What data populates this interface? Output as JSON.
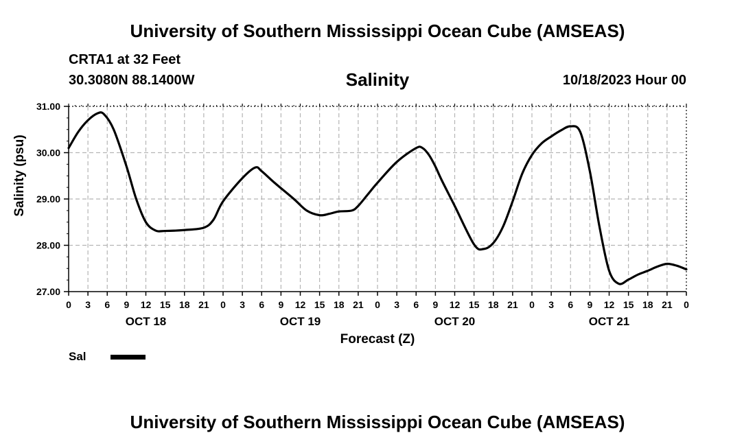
{
  "header": {
    "title": "University of Southern Mississippi Ocean Cube (AMSEAS)",
    "station": "CRTA1 at 32 Feet",
    "coordinates": "30.3080N  88.1400W",
    "date": "10/18/2023 Hour 00"
  },
  "footer": {
    "title": "University of Southern Mississippi Ocean Cube (AMSEAS)"
  },
  "legend": {
    "label": "Sal"
  },
  "colors": {
    "line": "#000000",
    "grid": "#b4b4b4"
  },
  "chart_data": {
    "type": "line",
    "title": "Salinity",
    "xlabel": "Forecast (Z)",
    "ylabel": "Salinity (psu)",
    "ylim": [
      27.0,
      31.0
    ],
    "yticks": [
      "27.00",
      "28.00",
      "29.00",
      "30.00",
      "31.00"
    ],
    "xlim_hours": [
      0,
      96
    ],
    "xtick_labels": [
      "0",
      "3",
      "6",
      "9",
      "12",
      "15",
      "18",
      "21",
      "0",
      "3",
      "6",
      "9",
      "12",
      "15",
      "18",
      "21",
      "0",
      "3",
      "6",
      "9",
      "12",
      "15",
      "18",
      "21",
      "0",
      "3",
      "6",
      "9",
      "12",
      "15",
      "18",
      "21",
      "0"
    ],
    "day_labels": [
      {
        "label": "OCT 18",
        "hour": 12
      },
      {
        "label": "OCT 19",
        "hour": 36
      },
      {
        "label": "OCT 20",
        "hour": 60
      },
      {
        "label": "OCT 21",
        "hour": 84
      }
    ],
    "grid": true,
    "series": [
      {
        "name": "Sal",
        "x": [
          0,
          1.5,
          3,
          4.5,
          5.5,
          7,
          9,
          10.5,
          12,
          13.5,
          15,
          18,
          21,
          22.5,
          24,
          27,
          29,
          30,
          32,
          35,
          37,
          39,
          40.5,
          42,
          44,
          45,
          46.5,
          48,
          51,
          54,
          55,
          56,
          57,
          58,
          60,
          63,
          64.5,
          66,
          67.5,
          69,
          70.5,
          72,
          73.5,
          75,
          76.5,
          78,
          79.5,
          81,
          82.5,
          84,
          85.5,
          87,
          88.5,
          90,
          91.5,
          93,
          94.5,
          96
        ],
        "values": [
          30.1,
          30.45,
          30.7,
          30.85,
          30.83,
          30.5,
          29.7,
          29.0,
          28.5,
          28.32,
          28.31,
          28.33,
          28.38,
          28.55,
          28.95,
          29.45,
          29.68,
          29.6,
          29.35,
          29.0,
          28.75,
          28.65,
          28.68,
          28.73,
          28.75,
          28.85,
          29.1,
          29.35,
          29.8,
          30.1,
          30.1,
          29.95,
          29.7,
          29.4,
          28.85,
          28.02,
          27.92,
          28.05,
          28.4,
          28.95,
          29.55,
          29.95,
          30.2,
          30.35,
          30.48,
          30.57,
          30.45,
          29.6,
          28.4,
          27.45,
          27.17,
          27.26,
          27.37,
          27.45,
          27.54,
          27.6,
          27.56,
          27.48
        ]
      }
    ]
  }
}
